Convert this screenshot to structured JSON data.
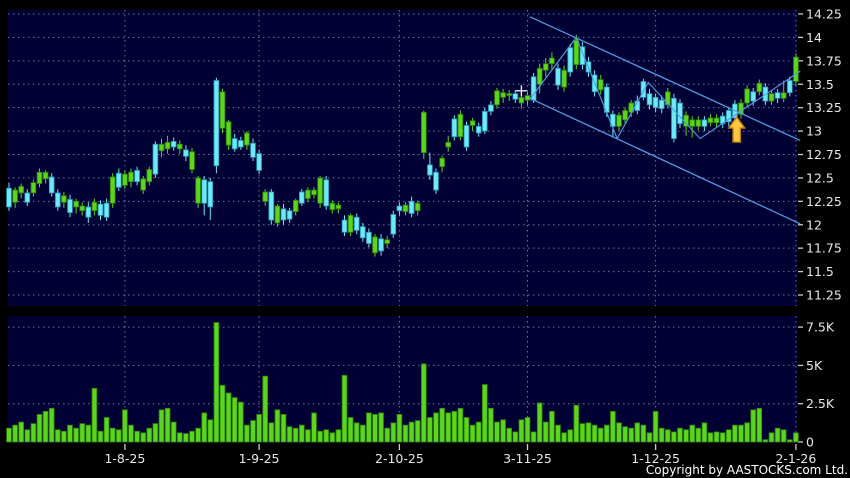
{
  "footer": {
    "copyright": "Copyright by AASTOCKS.com Ltd."
  },
  "colors": {
    "background": "#000000",
    "panel": "#000034",
    "grid": "#8f8fb4",
    "axis_text": "#e8e8e8",
    "tick": "#cccccc",
    "candle_up": "#5dd41e",
    "candle_up_edge": "#2e8408",
    "candle_down": "#6fe8f8",
    "candle_down_edge": "#2a97b5",
    "volume_bar": "#5dd41e",
    "volume_bar_edge": "#2e8408",
    "trendline": "#4f9ee0",
    "arrow_fill": "#ffc83d",
    "arrow_edge": "#bf7e12",
    "crosshair": "#ffffff"
  },
  "chart_data": {
    "type": "candlestick_with_volume",
    "price_axis": {
      "min": 11.25,
      "max": 14.25,
      "tick_values": [
        14.25,
        14,
        13.75,
        13.5,
        13.25,
        13,
        12.75,
        12.5,
        12.25,
        12,
        11.75,
        11.5,
        11.25
      ],
      "tick_labels": [
        "14.25",
        "14",
        "13.75",
        "13.5",
        "13.25",
        "13",
        "12.75",
        "12.5",
        "12.25",
        "12",
        "11.75",
        "11.5",
        "11.25"
      ]
    },
    "volume_axis": {
      "tick_values": [
        7500,
        5000,
        2500,
        0
      ],
      "tick_labels": [
        "7.5K",
        "5K",
        "2.5K",
        "0"
      ]
    },
    "x_labels": [
      {
        "label": "1-8-25",
        "index": 19
      },
      {
        "label": "1-9-25",
        "index": 41
      },
      {
        "label": "2-10-25",
        "index": 64
      },
      {
        "label": "3-11-25",
        "index": 85
      },
      {
        "label": "1-12-25",
        "index": 106
      },
      {
        "label": "2-1-26",
        "index": 129
      }
    ],
    "candles": [
      [
        12.39,
        12.45,
        12.15,
        12.19,
        "c"
      ],
      [
        12.24,
        12.4,
        12.18,
        12.37,
        "g"
      ],
      [
        12.34,
        12.44,
        12.28,
        12.41,
        "g"
      ],
      [
        12.34,
        12.38,
        12.2,
        12.24,
        "c"
      ],
      [
        12.34,
        12.48,
        12.3,
        12.45,
        "g"
      ],
      [
        12.44,
        12.6,
        12.4,
        12.56,
        "g"
      ],
      [
        12.49,
        12.58,
        12.44,
        12.56,
        "g"
      ],
      [
        12.51,
        12.55,
        12.3,
        12.34,
        "c"
      ],
      [
        12.34,
        12.38,
        12.15,
        12.19,
        "c"
      ],
      [
        12.24,
        12.35,
        12.18,
        12.31,
        "g"
      ],
      [
        12.27,
        12.32,
        12.08,
        12.13,
        "c"
      ],
      [
        12.19,
        12.28,
        12.12,
        12.25,
        "g"
      ],
      [
        12.15,
        12.24,
        12.1,
        12.2,
        "g"
      ],
      [
        12.19,
        12.24,
        12.02,
        12.08,
        "c"
      ],
      [
        12.15,
        12.28,
        12.1,
        12.24,
        "g"
      ],
      [
        12.22,
        12.26,
        12.05,
        12.1,
        "c"
      ],
      [
        12.23,
        12.28,
        12.04,
        12.08,
        "c"
      ],
      [
        12.23,
        12.55,
        12.18,
        12.51,
        "g"
      ],
      [
        12.55,
        12.6,
        12.36,
        12.4,
        "c"
      ],
      [
        12.42,
        12.58,
        12.38,
        12.54,
        "g"
      ],
      [
        12.46,
        12.6,
        12.4,
        12.56,
        "g"
      ],
      [
        12.58,
        12.62,
        12.42,
        12.46,
        "c"
      ],
      [
        12.37,
        12.52,
        12.33,
        12.49,
        "g"
      ],
      [
        12.46,
        12.62,
        12.42,
        12.59,
        "g"
      ],
      [
        12.86,
        12.89,
        12.5,
        12.54,
        "c"
      ],
      [
        12.79,
        12.92,
        12.72,
        12.86,
        "g"
      ],
      [
        12.81,
        12.95,
        12.76,
        12.88,
        "g"
      ],
      [
        12.89,
        12.93,
        12.79,
        12.83,
        "c"
      ],
      [
        12.81,
        12.9,
        12.76,
        12.86,
        "g"
      ],
      [
        12.8,
        12.85,
        12.68,
        12.73,
        "c"
      ],
      [
        12.59,
        12.82,
        12.55,
        12.78,
        "g"
      ],
      [
        12.23,
        12.52,
        12.18,
        12.5,
        "g"
      ],
      [
        12.48,
        12.52,
        12.1,
        12.23,
        "c"
      ],
      [
        12.46,
        12.5,
        12.05,
        12.19,
        "c"
      ],
      [
        13.54,
        13.57,
        12.55,
        12.63,
        "c"
      ],
      [
        13.03,
        13.45,
        12.98,
        13.42,
        "g"
      ],
      [
        12.85,
        13.12,
        12.8,
        13.1,
        "g"
      ],
      [
        12.92,
        12.97,
        12.78,
        12.81,
        "c"
      ],
      [
        12.9,
        12.94,
        12.8,
        12.83,
        "c"
      ],
      [
        12.85,
        13.0,
        12.8,
        12.98,
        "g"
      ],
      [
        12.87,
        12.92,
        12.68,
        12.72,
        "c"
      ],
      [
        12.76,
        12.8,
        12.54,
        12.58,
        "c"
      ],
      [
        12.25,
        12.38,
        12.2,
        12.35,
        "g"
      ],
      [
        12.35,
        12.38,
        12.0,
        12.05,
        "c"
      ],
      [
        12.02,
        12.22,
        11.98,
        12.2,
        "g"
      ],
      [
        12.17,
        12.22,
        12.0,
        12.05,
        "c"
      ],
      [
        12.15,
        12.18,
        12.02,
        12.06,
        "c"
      ],
      [
        12.14,
        12.28,
        12.1,
        12.26,
        "g"
      ],
      [
        12.35,
        12.38,
        12.2,
        12.23,
        "c"
      ],
      [
        12.28,
        12.4,
        12.24,
        12.37,
        "g"
      ],
      [
        12.32,
        12.4,
        12.28,
        12.37,
        "g"
      ],
      [
        12.23,
        12.52,
        12.18,
        12.5,
        "g"
      ],
      [
        12.48,
        12.52,
        12.16,
        12.2,
        "c"
      ],
      [
        12.16,
        12.26,
        12.12,
        12.23,
        "g"
      ],
      [
        12.17,
        12.24,
        12.12,
        12.21,
        "g"
      ],
      [
        12.05,
        12.1,
        11.88,
        11.92,
        "c"
      ],
      [
        11.92,
        12.12,
        11.88,
        12.1,
        "g"
      ],
      [
        12.08,
        12.12,
        11.9,
        11.94,
        "c"
      ],
      [
        11.98,
        12.02,
        11.82,
        11.86,
        "c"
      ],
      [
        11.92,
        11.96,
        11.76,
        11.8,
        "c"
      ],
      [
        11.7,
        11.9,
        11.66,
        11.87,
        "g"
      ],
      [
        11.85,
        11.9,
        11.67,
        11.72,
        "c"
      ],
      [
        11.8,
        11.88,
        11.75,
        11.84,
        "g"
      ],
      [
        12.11,
        12.15,
        11.86,
        11.9,
        "c"
      ],
      [
        12.2,
        12.24,
        12.1,
        12.15,
        "c"
      ],
      [
        12.14,
        12.24,
        12.1,
        12.21,
        "g"
      ],
      [
        12.25,
        12.3,
        12.08,
        12.12,
        "c"
      ],
      [
        12.15,
        12.26,
        12.1,
        12.23,
        "g"
      ],
      [
        12.77,
        13.22,
        12.7,
        13.2,
        "g"
      ],
      [
        12.64,
        12.77,
        12.48,
        12.53,
        "c"
      ],
      [
        12.56,
        12.6,
        12.33,
        12.37,
        "c"
      ],
      [
        12.62,
        12.74,
        12.56,
        12.71,
        "g"
      ],
      [
        12.83,
        12.95,
        12.78,
        12.88,
        "g"
      ],
      [
        13.13,
        13.17,
        12.9,
        12.94,
        "c"
      ],
      [
        12.94,
        13.22,
        12.9,
        13.18,
        "g"
      ],
      [
        13.06,
        13.1,
        12.79,
        12.83,
        "c"
      ],
      [
        13.06,
        13.14,
        13.0,
        13.11,
        "g"
      ],
      [
        13.05,
        13.09,
        12.94,
        12.98,
        "c"
      ],
      [
        13.21,
        13.25,
        12.97,
        13.0,
        "c"
      ],
      [
        13.28,
        13.32,
        13.17,
        13.21,
        "c"
      ],
      [
        13.28,
        13.46,
        13.24,
        13.43,
        "g"
      ],
      [
        13.36,
        13.45,
        13.3,
        13.41,
        "g"
      ],
      [
        13.38,
        13.44,
        13.32,
        13.4,
        "g"
      ],
      [
        13.4,
        13.44,
        13.3,
        13.34,
        "c"
      ],
      [
        13.3,
        13.4,
        13.24,
        13.36,
        "g"
      ],
      [
        13.33,
        13.42,
        13.28,
        13.38,
        "g"
      ],
      [
        13.58,
        13.62,
        13.3,
        13.33,
        "c"
      ],
      [
        13.5,
        13.72,
        13.4,
        13.67,
        "g"
      ],
      [
        13.65,
        13.78,
        13.58,
        13.72,
        "g"
      ],
      [
        13.72,
        13.84,
        13.66,
        13.78,
        "g"
      ],
      [
        13.67,
        13.72,
        13.44,
        13.49,
        "c"
      ],
      [
        13.47,
        13.7,
        13.42,
        13.65,
        "g"
      ],
      [
        13.89,
        13.93,
        13.58,
        13.63,
        "c"
      ],
      [
        13.71,
        14.03,
        13.66,
        13.97,
        "g"
      ],
      [
        13.9,
        13.95,
        13.66,
        13.71,
        "c"
      ],
      [
        13.74,
        13.79,
        13.58,
        13.63,
        "c"
      ],
      [
        13.6,
        13.65,
        13.37,
        13.42,
        "c"
      ],
      [
        13.44,
        13.6,
        13.39,
        13.55,
        "g"
      ],
      [
        13.47,
        13.51,
        13.15,
        13.2,
        "c"
      ],
      [
        13.18,
        13.22,
        12.93,
        13.05,
        "c"
      ],
      [
        13.05,
        13.2,
        13.0,
        13.17,
        "g"
      ],
      [
        13.12,
        13.25,
        13.08,
        13.22,
        "g"
      ],
      [
        13.2,
        13.33,
        13.15,
        13.3,
        "g"
      ],
      [
        13.32,
        13.38,
        13.18,
        13.22,
        "c"
      ],
      [
        13.53,
        13.56,
        13.33,
        13.36,
        "c"
      ],
      [
        13.4,
        13.45,
        13.23,
        13.28,
        "c"
      ],
      [
        13.36,
        13.4,
        13.2,
        13.25,
        "c"
      ],
      [
        13.33,
        13.38,
        13.19,
        13.24,
        "c"
      ],
      [
        13.28,
        13.46,
        13.24,
        13.42,
        "g"
      ],
      [
        13.35,
        13.4,
        12.88,
        12.92,
        "c"
      ],
      [
        13.3,
        13.34,
        13.03,
        13.08,
        "c"
      ],
      [
        13.05,
        13.21,
        12.95,
        13.17,
        "g"
      ],
      [
        13.05,
        13.16,
        12.93,
        13.12,
        "g"
      ],
      [
        13.05,
        13.16,
        13.01,
        13.12,
        "g"
      ],
      [
        13.12,
        13.16,
        13.0,
        13.05,
        "c"
      ],
      [
        13.09,
        13.18,
        13.05,
        13.14,
        "g"
      ],
      [
        13.09,
        13.18,
        13.04,
        13.14,
        "g"
      ],
      [
        13.16,
        13.2,
        13.03,
        13.08,
        "c"
      ],
      [
        13.22,
        13.26,
        13.05,
        13.1,
        "c"
      ],
      [
        13.29,
        13.33,
        13.1,
        13.14,
        "c"
      ],
      [
        13.18,
        13.34,
        13.13,
        13.3,
        "g"
      ],
      [
        13.3,
        13.49,
        13.26,
        13.45,
        "g"
      ],
      [
        13.42,
        13.46,
        13.27,
        13.32,
        "c"
      ],
      [
        13.42,
        13.55,
        13.38,
        13.51,
        "g"
      ],
      [
        13.47,
        13.51,
        13.28,
        13.32,
        "c"
      ],
      [
        13.32,
        13.44,
        13.28,
        13.4,
        "g"
      ],
      [
        13.41,
        13.45,
        13.3,
        13.35,
        "c"
      ],
      [
        13.35,
        13.54,
        13.31,
        13.41,
        "g"
      ],
      [
        13.54,
        13.58,
        13.37,
        13.41,
        "c"
      ],
      [
        13.53,
        13.83,
        13.48,
        13.79,
        "g"
      ]
    ],
    "volumes_k": [
      0.9,
      1.1,
      1.3,
      0.8,
      1.2,
      1.8,
      2.0,
      2.2,
      0.8,
      0.7,
      1.1,
      0.9,
      1.2,
      1.1,
      3.5,
      0.7,
      1.6,
      0.9,
      0.8,
      2.1,
      1.1,
      0.7,
      0.6,
      0.9,
      1.2,
      2.1,
      2.2,
      1.3,
      0.6,
      0.55,
      0.7,
      0.9,
      1.9,
      1.45,
      7.8,
      3.7,
      3.2,
      2.9,
      2.6,
      1.1,
      1.4,
      1.8,
      4.3,
      1.25,
      2.1,
      1.8,
      1.0,
      0.9,
      1.1,
      0.8,
      1.9,
      0.7,
      0.8,
      0.6,
      0.8,
      4.35,
      1.6,
      1.25,
      1.1,
      1.9,
      1.8,
      1.9,
      0.9,
      1.25,
      1.8,
      1.1,
      1.3,
      1.4,
      5.1,
      1.6,
      1.9,
      2.2,
      1.9,
      2.0,
      2.2,
      1.6,
      1.1,
      1.3,
      3.75,
      2.2,
      1.3,
      1.45,
      0.9,
      0.66,
      1.45,
      1.6,
      0.66,
      2.55,
      1.3,
      2.0,
      1.1,
      0.6,
      0.8,
      2.4,
      1.2,
      1.25,
      1.1,
      0.9,
      1.1,
      2.0,
      1.25,
      1.0,
      0.9,
      1.25,
      1.1,
      0.6,
      2.0,
      0.9,
      0.8,
      0.66,
      0.9,
      0.8,
      1.1,
      0.9,
      1.25,
      0.6,
      0.66,
      0.6,
      0.8,
      1.1,
      1.1,
      1.25,
      2.1,
      2.2,
      0.15,
      0.6,
      0.9,
      0.8,
      0.15,
      0.6
    ],
    "overlays": {
      "trendlines": [
        {
          "name": "channel-upper",
          "x1_idx": 85.4,
          "p1": 14.22,
          "x2_idx": 129.7,
          "p2": 12.9
        },
        {
          "name": "channel-lower",
          "x1_idx": 85.4,
          "p1": 13.35,
          "x2_idx": 129.7,
          "p2": 12.01
        }
      ],
      "zigzag": [
        [
          85.4,
          13.34
        ],
        [
          93.0,
          14.0
        ],
        [
          99.7,
          12.92
        ],
        [
          104.8,
          13.52
        ],
        [
          113.3,
          12.92
        ],
        [
          129.7,
          13.64
        ]
      ],
      "arrow_marker": {
        "idx": 119.3,
        "tip_price": 13.15
      },
      "crosshair": {
        "idx": 84.0,
        "price": 13.43
      }
    },
    "legend_position": "none",
    "grid": true
  }
}
